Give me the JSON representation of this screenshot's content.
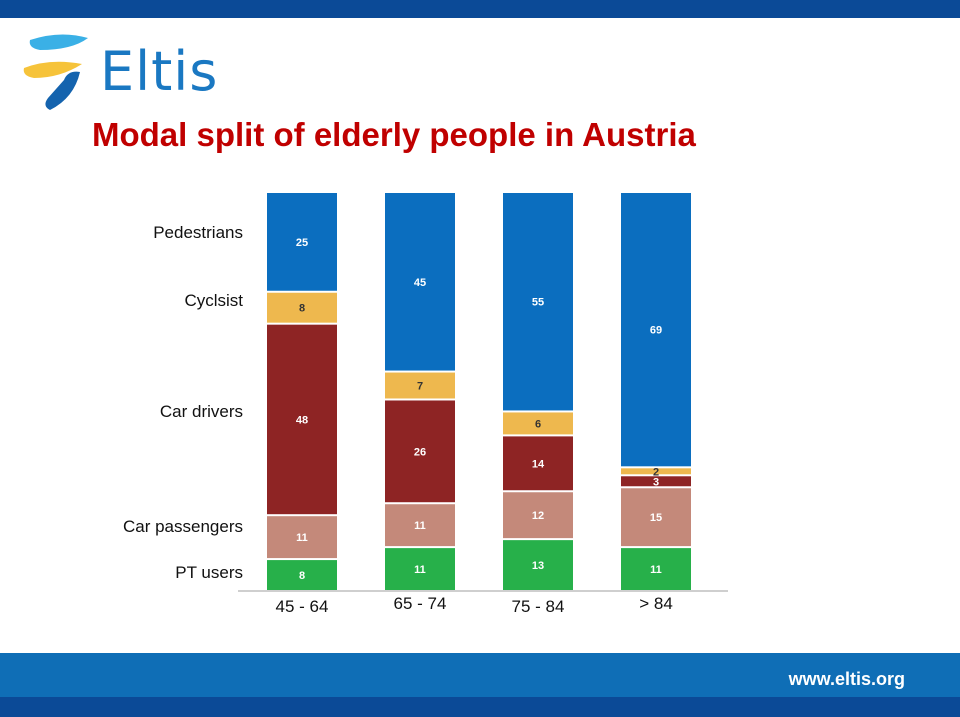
{
  "brand": {
    "name": "Eltis",
    "url": "www.eltis.org"
  },
  "colors": {
    "top_bar": "#0b4a97",
    "footer": "#0f6eb6",
    "title": "#c00000",
    "logo_text": "#1a78c2"
  },
  "chart_data": {
    "type": "bar",
    "stacked": true,
    "title": "Modal split of elderly people in Austria",
    "categories": [
      "45 - 64",
      "65 - 74",
      "75 - 84",
      "> 84"
    ],
    "series": [
      {
        "name": "PT users",
        "color": "#27b04a",
        "values": [
          8,
          11,
          13,
          11
        ]
      },
      {
        "name": "Car passengers",
        "color": "#c4897a",
        "values": [
          11,
          11,
          12,
          15
        ]
      },
      {
        "name": "Car drivers",
        "color": "#8e2424",
        "values": [
          48,
          26,
          14,
          3
        ]
      },
      {
        "name": "Cyclsist",
        "color": "#eeb84e",
        "values": [
          8,
          7,
          6,
          2
        ]
      },
      {
        "name": "Pedestrians",
        "color": "#0b6ebf",
        "values": [
          25,
          45,
          55,
          69
        ]
      }
    ],
    "ylim": [
      0,
      100
    ],
    "grid": false,
    "legend_placement": "left"
  }
}
